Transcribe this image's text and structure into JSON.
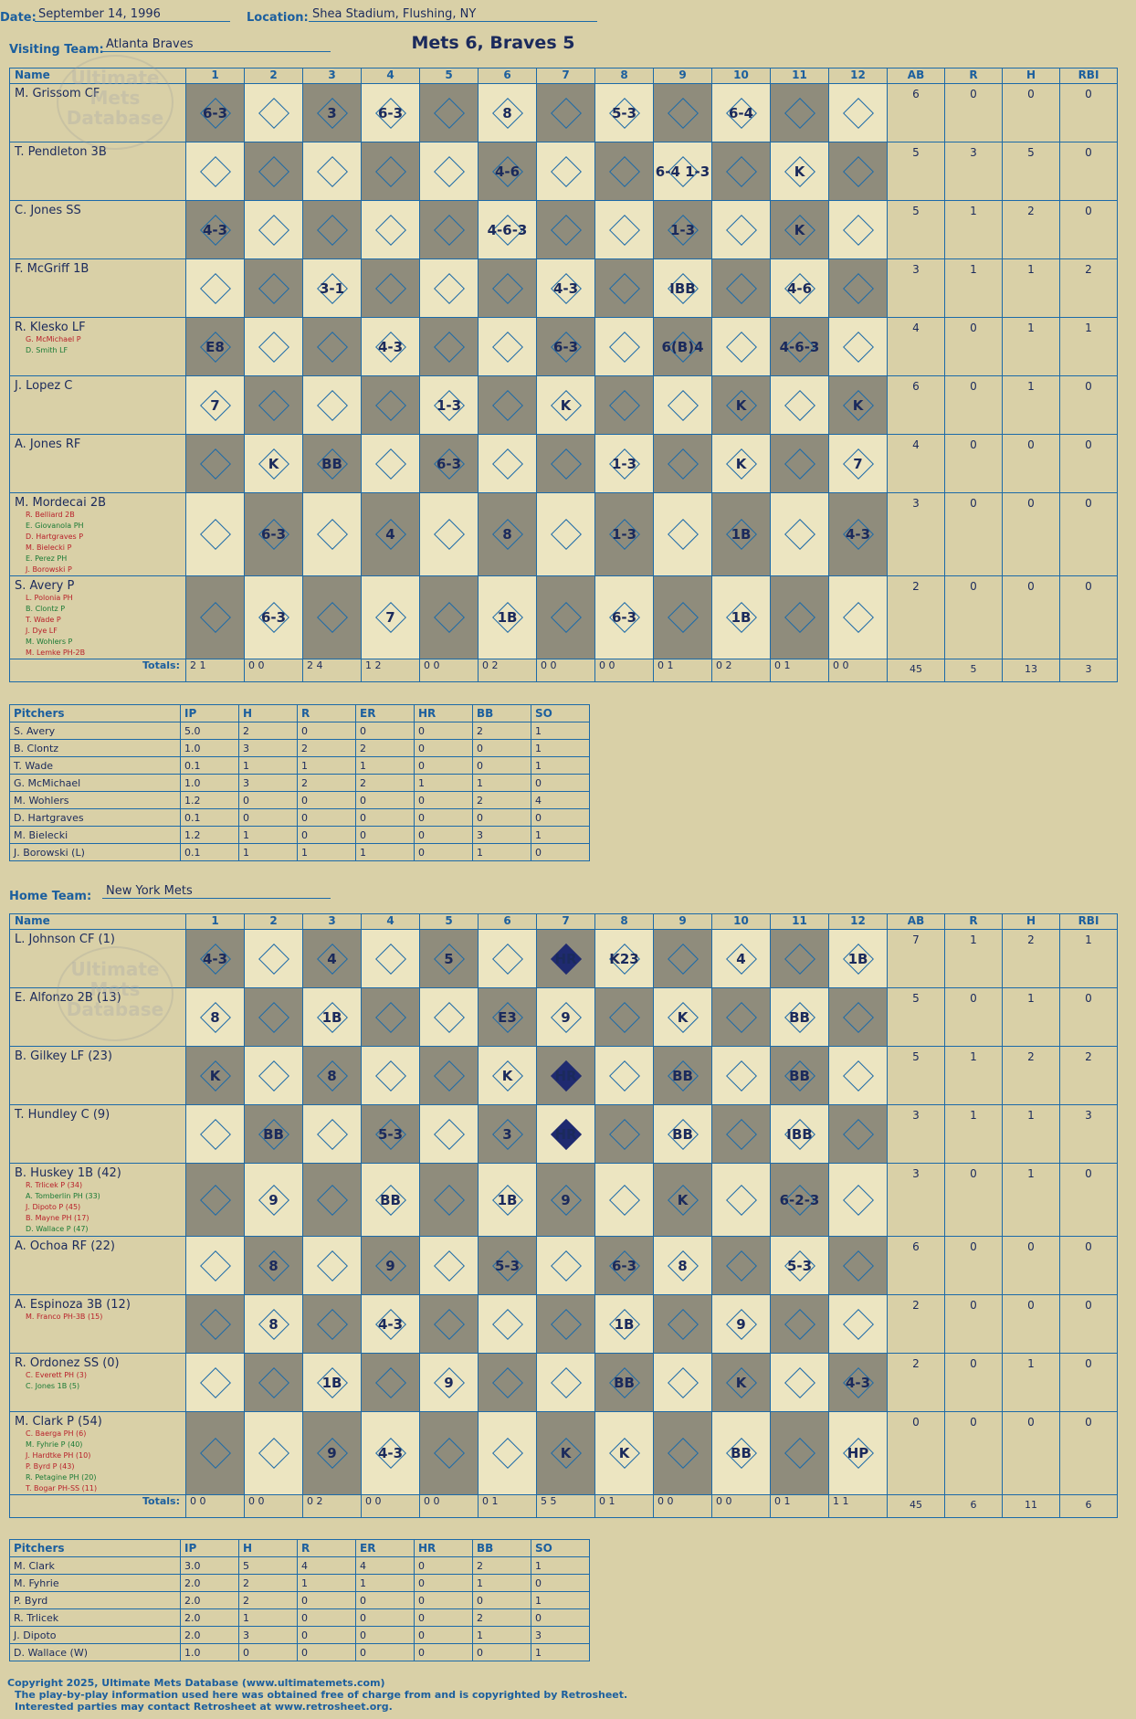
{
  "header": {
    "date_label": "Date:",
    "date": "September 14, 1996",
    "location_label": "Location:",
    "location": "Shea Stadium, Flushing, NY",
    "result": "Mets 6, Braves 5"
  },
  "visitors": {
    "team_label": "Visiting Team:",
    "team": "Atlanta Braves",
    "columns": [
      "Name",
      "1",
      "2",
      "3",
      "4",
      "5",
      "6",
      "7",
      "8",
      "9",
      "10",
      "11",
      "12",
      "AB",
      "R",
      "H",
      "RBI"
    ],
    "rows": [
      {
        "name": "M. Grissom CF",
        "subs": [],
        "ab": "6",
        "r": "0",
        "h": "0",
        "rbi": "0",
        "plays": [
          "6-3",
          "",
          "3",
          "6-3",
          "",
          "8",
          "",
          "5-3",
          "",
          "6-4",
          "",
          ""
        ]
      },
      {
        "name": "T. Pendleton 3B",
        "subs": [],
        "ab": "5",
        "r": "3",
        "h": "5",
        "rbi": "0",
        "plays": [
          "",
          "",
          "",
          "",
          "",
          "4-6",
          "",
          "",
          "6-4 1-3",
          "",
          "K",
          ""
        ]
      },
      {
        "name": "C. Jones SS",
        "subs": [],
        "ab": "5",
        "r": "1",
        "h": "2",
        "rbi": "0",
        "plays": [
          "4-3",
          "",
          "",
          "",
          "",
          "4-6-3",
          "",
          "",
          "1-3",
          "",
          "K",
          ""
        ]
      },
      {
        "name": "F. McGriff 1B",
        "subs": [],
        "ab": "3",
        "r": "1",
        "h": "1",
        "rbi": "2",
        "plays": [
          "",
          "",
          "3-1",
          "",
          "",
          "",
          "4-3",
          "",
          "IBB",
          "",
          "4-6",
          ""
        ]
      },
      {
        "name": "R. Klesko LF",
        "subs": [
          {
            "t": "G. McMichael P",
            "c": "r"
          },
          {
            "t": "D. Smith LF",
            "c": "g"
          }
        ],
        "ab": "4",
        "r": "0",
        "h": "1",
        "rbi": "1",
        "plays": [
          "E8",
          "",
          "",
          "4-3",
          "",
          "",
          "6-3",
          "",
          "6(B)4",
          "",
          "4-6-3",
          ""
        ]
      },
      {
        "name": "J. Lopez C",
        "subs": [],
        "ab": "6",
        "r": "0",
        "h": "1",
        "rbi": "0",
        "plays": [
          "7",
          "",
          "",
          "",
          "1-3",
          "",
          "K",
          "",
          "",
          "K",
          "",
          "K"
        ]
      },
      {
        "name": "A. Jones RF",
        "subs": [],
        "ab": "4",
        "r": "0",
        "h": "0",
        "rbi": "0",
        "plays": [
          "",
          "K",
          "BB",
          "",
          "6-3",
          "",
          "",
          "1-3",
          "",
          "K",
          "",
          "7"
        ]
      },
      {
        "name": "M. Mordecai 2B",
        "subs": [
          {
            "t": "R. Belliard 2B",
            "c": "r"
          },
          {
            "t": "E. Giovanola PH",
            "c": "g"
          },
          {
            "t": "D. Hartgraves P",
            "c": "r"
          },
          {
            "t": "M. Bielecki P",
            "c": "r"
          },
          {
            "t": "E. Perez PH",
            "c": "g"
          },
          {
            "t": "J. Borowski P",
            "c": "r"
          }
        ],
        "ab": "3",
        "r": "0",
        "h": "0",
        "rbi": "0",
        "plays": [
          "",
          "6-3",
          "",
          "4",
          "",
          "8",
          "",
          "1-3",
          "",
          "1B",
          "",
          "4-3"
        ]
      },
      {
        "name": "S. Avery P",
        "subs": [
          {
            "t": "L. Polonia PH",
            "c": "r"
          },
          {
            "t": "B. Clontz P",
            "c": "g"
          },
          {
            "t": "T. Wade P",
            "c": "r"
          },
          {
            "t": "J. Dye LF",
            "c": "r"
          },
          {
            "t": "M. Wohlers P",
            "c": "g"
          },
          {
            "t": "M. Lemke PH-2B",
            "c": "r"
          }
        ],
        "ab": "2",
        "r": "0",
        "h": "0",
        "rbi": "0",
        "plays": [
          "",
          "6-3",
          "",
          "7",
          "",
          "1B",
          "",
          "6-3",
          "",
          "1B",
          "",
          ""
        ]
      }
    ],
    "totals_label": "Totals:",
    "totals": {
      "rh": [
        "2 1",
        "0 0",
        "2 4",
        "1 2",
        "0 0",
        "0 2",
        "0 0",
        "0 0",
        "0 1",
        "0 2",
        "0 1",
        "0 0"
      ],
      "ab": "45",
      "r": "5",
      "h": "13",
      "rbi": "3"
    },
    "pitchers_header": [
      "Pitchers",
      "IP",
      "H",
      "R",
      "ER",
      "HR",
      "BB",
      "SO"
    ],
    "pitchers": [
      [
        "S. Avery",
        "5.0",
        "2",
        "0",
        "0",
        "0",
        "2",
        "1"
      ],
      [
        "B. Clontz",
        "1.0",
        "3",
        "2",
        "2",
        "0",
        "0",
        "1"
      ],
      [
        "T. Wade",
        "0.1",
        "1",
        "1",
        "1",
        "0",
        "0",
        "1"
      ],
      [
        "G. McMichael",
        "1.0",
        "3",
        "2",
        "2",
        "1",
        "1",
        "0"
      ],
      [
        "M. Wohlers",
        "1.2",
        "0",
        "0",
        "0",
        "0",
        "2",
        "4"
      ],
      [
        "D. Hartgraves",
        "0.1",
        "0",
        "0",
        "0",
        "0",
        "0",
        "0"
      ],
      [
        "M. Bielecki",
        "1.2",
        "1",
        "0",
        "0",
        "0",
        "3",
        "1"
      ],
      [
        "J. Borowski (L)",
        "0.1",
        "1",
        "1",
        "1",
        "0",
        "1",
        "0"
      ]
    ]
  },
  "home": {
    "team_label": "Home Team:",
    "team": "New York Mets",
    "rows": [
      {
        "name": "L. Johnson CF (1)",
        "subs": [],
        "ab": "7",
        "r": "1",
        "h": "2",
        "rbi": "1",
        "plays": [
          "4-3",
          "",
          "4",
          "",
          "5",
          "",
          "HR",
          "K23",
          "",
          "4",
          "",
          "1B"
        ]
      },
      {
        "name": "E. Alfonzo 2B (13)",
        "subs": [],
        "ab": "5",
        "r": "0",
        "h": "1",
        "rbi": "0",
        "plays": [
          "8",
          "",
          "1B",
          "",
          "",
          "E3",
          "9",
          "",
          "K",
          "",
          "BB",
          ""
        ]
      },
      {
        "name": "B. Gilkey LF (23)",
        "subs": [],
        "ab": "5",
        "r": "1",
        "h": "2",
        "rbi": "2",
        "plays": [
          "K",
          "",
          "8",
          "",
          "",
          "K",
          "HR",
          "",
          "BB",
          "",
          "BB",
          ""
        ]
      },
      {
        "name": "T. Hundley C (9)",
        "subs": [],
        "ab": "3",
        "r": "1",
        "h": "1",
        "rbi": "3",
        "plays": [
          "",
          "BB",
          "",
          "5-3",
          "",
          "3",
          "HR",
          "",
          "BB",
          "",
          "IBB",
          ""
        ]
      },
      {
        "name": "B. Huskey 1B (42)",
        "subs": [
          {
            "t": "R. Trlicek P (34)",
            "c": "r"
          },
          {
            "t": "A. Tomberlin PH (33)",
            "c": "g"
          },
          {
            "t": "J. Dipoto P (45)",
            "c": "r"
          },
          {
            "t": "B. Mayne PH (17)",
            "c": "r"
          },
          {
            "t": "D. Wallace P (47)",
            "c": "g"
          }
        ],
        "ab": "3",
        "r": "0",
        "h": "1",
        "rbi": "0",
        "plays": [
          "",
          "9",
          "",
          "BB",
          "",
          "1B",
          "9",
          "",
          "K",
          "",
          "6-2-3",
          ""
        ]
      },
      {
        "name": "A. Ochoa RF (22)",
        "subs": [],
        "ab": "6",
        "r": "0",
        "h": "0",
        "rbi": "0",
        "plays": [
          "",
          "8",
          "",
          "9",
          "",
          "5-3",
          "",
          "6-3",
          "8",
          "",
          "5-3",
          ""
        ]
      },
      {
        "name": "A. Espinoza 3B (12)",
        "subs": [
          {
            "t": "M. Franco PH-3B (15)",
            "c": "r"
          }
        ],
        "ab": "2",
        "r": "0",
        "h": "0",
        "rbi": "0",
        "plays": [
          "",
          "8",
          "",
          "4-3",
          "",
          "",
          "",
          "1B",
          "",
          "9",
          "",
          ""
        ]
      },
      {
        "name": "R. Ordonez SS (0)",
        "subs": [
          {
            "t": "C. Everett PH (3)",
            "c": "r"
          },
          {
            "t": "C. Jones 1B (5)",
            "c": "g"
          }
        ],
        "ab": "2",
        "r": "0",
        "h": "1",
        "rbi": "0",
        "plays": [
          "",
          "",
          "1B",
          "",
          "9",
          "",
          "",
          "BB",
          "",
          "K",
          "",
          "4-3"
        ]
      },
      {
        "name": "M. Clark P (54)",
        "subs": [
          {
            "t": "C. Baerga PH (6)",
            "c": "r"
          },
          {
            "t": "M. Fyhrie P (40)",
            "c": "g"
          },
          {
            "t": "J. Hardtke PH (10)",
            "c": "r"
          },
          {
            "t": "P. Byrd P (43)",
            "c": "r"
          },
          {
            "t": "R. Petagine PH (20)",
            "c": "g"
          },
          {
            "t": "T. Bogar PH-SS (11)",
            "c": "r"
          }
        ],
        "ab": "0",
        "r": "0",
        "h": "0",
        "rbi": "0",
        "plays": [
          "",
          "",
          "9",
          "4-3",
          "",
          "",
          "K",
          "K",
          "",
          "BB",
          "",
          "HP"
        ]
      }
    ],
    "totals": {
      "rh": [
        "0 0",
        "0 0",
        "0 2",
        "0 0",
        "0 0",
        "0 1",
        "5 5",
        "0 1",
        "0 0",
        "0 0",
        "0 1",
        "1 1"
      ],
      "ab": "45",
      "r": "6",
      "h": "11",
      "rbi": "6"
    },
    "pitchers": [
      [
        "M. Clark",
        "3.0",
        "5",
        "4",
        "4",
        "0",
        "2",
        "1"
      ],
      [
        "M. Fyhrie",
        "2.0",
        "2",
        "1",
        "1",
        "0",
        "1",
        "0"
      ],
      [
        "P. Byrd",
        "2.0",
        "2",
        "0",
        "0",
        "0",
        "0",
        "1"
      ],
      [
        "R. Trlicek",
        "2.0",
        "1",
        "0",
        "0",
        "0",
        "2",
        "0"
      ],
      [
        "J. Dipoto",
        "2.0",
        "3",
        "0",
        "0",
        "0",
        "1",
        "3"
      ],
      [
        "D. Wallace (W)",
        "1.0",
        "0",
        "0",
        "0",
        "0",
        "0",
        "1"
      ]
    ]
  },
  "watermark": [
    "Ultimate",
    "Mets",
    "Database"
  ],
  "footer": [
    "Copyright 2025, Ultimate Mets Database (www.ultimatemets.com)",
    "The play-by-play information used here was obtained free of charge from and is copyrighted by Retrosheet.",
    "Interested parties may contact Retrosheet at www.retrosheet.org."
  ]
}
